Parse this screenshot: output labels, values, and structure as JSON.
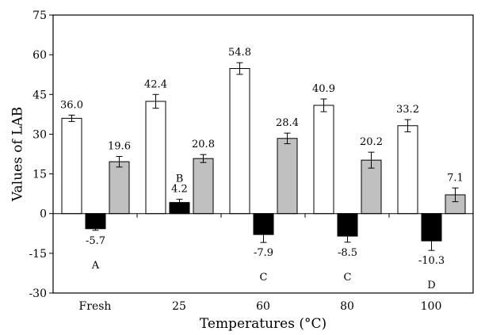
{
  "chart_data": {
    "type": "bar",
    "xlabel": "Temperatures (°C)",
    "ylabel": "Values of LAB",
    "ylim": [
      -30,
      75
    ],
    "yticks": [
      -30,
      -15,
      0,
      15,
      30,
      45,
      60,
      75
    ],
    "grid": false,
    "categories": [
      "Fresh",
      "25",
      "60",
      "80",
      "100"
    ],
    "series": [
      {
        "key": "L",
        "color": "#ffffff",
        "values": [
          36.0,
          42.4,
          54.8,
          40.9,
          33.2
        ],
        "errors": [
          1.2,
          2.6,
          2.2,
          2.4,
          2.3
        ]
      },
      {
        "key": "a",
        "color": "#000000",
        "values": [
          -5.7,
          4.2,
          -7.9,
          -8.5,
          -10.3
        ],
        "errors": [
          0.6,
          1.2,
          3.0,
          2.3,
          3.6
        ]
      },
      {
        "key": "b",
        "color": "#c0c0c0",
        "values": [
          19.6,
          20.8,
          28.4,
          20.2,
          7.1
        ],
        "errors": [
          2.0,
          1.5,
          2.0,
          3.0,
          2.6
        ]
      }
    ],
    "data_labels": [
      [
        "36.0",
        "-5.7",
        "19.6"
      ],
      [
        "42.4",
        "4.2",
        "20.8"
      ],
      [
        "54.8",
        "-7.9",
        "28.4"
      ],
      [
        "40.9",
        "-8.5",
        "20.2"
      ],
      [
        "33.2",
        "-10.3",
        "7.1"
      ]
    ],
    "group_letters": [
      "A",
      "B",
      "C",
      "C",
      "D"
    ]
  }
}
